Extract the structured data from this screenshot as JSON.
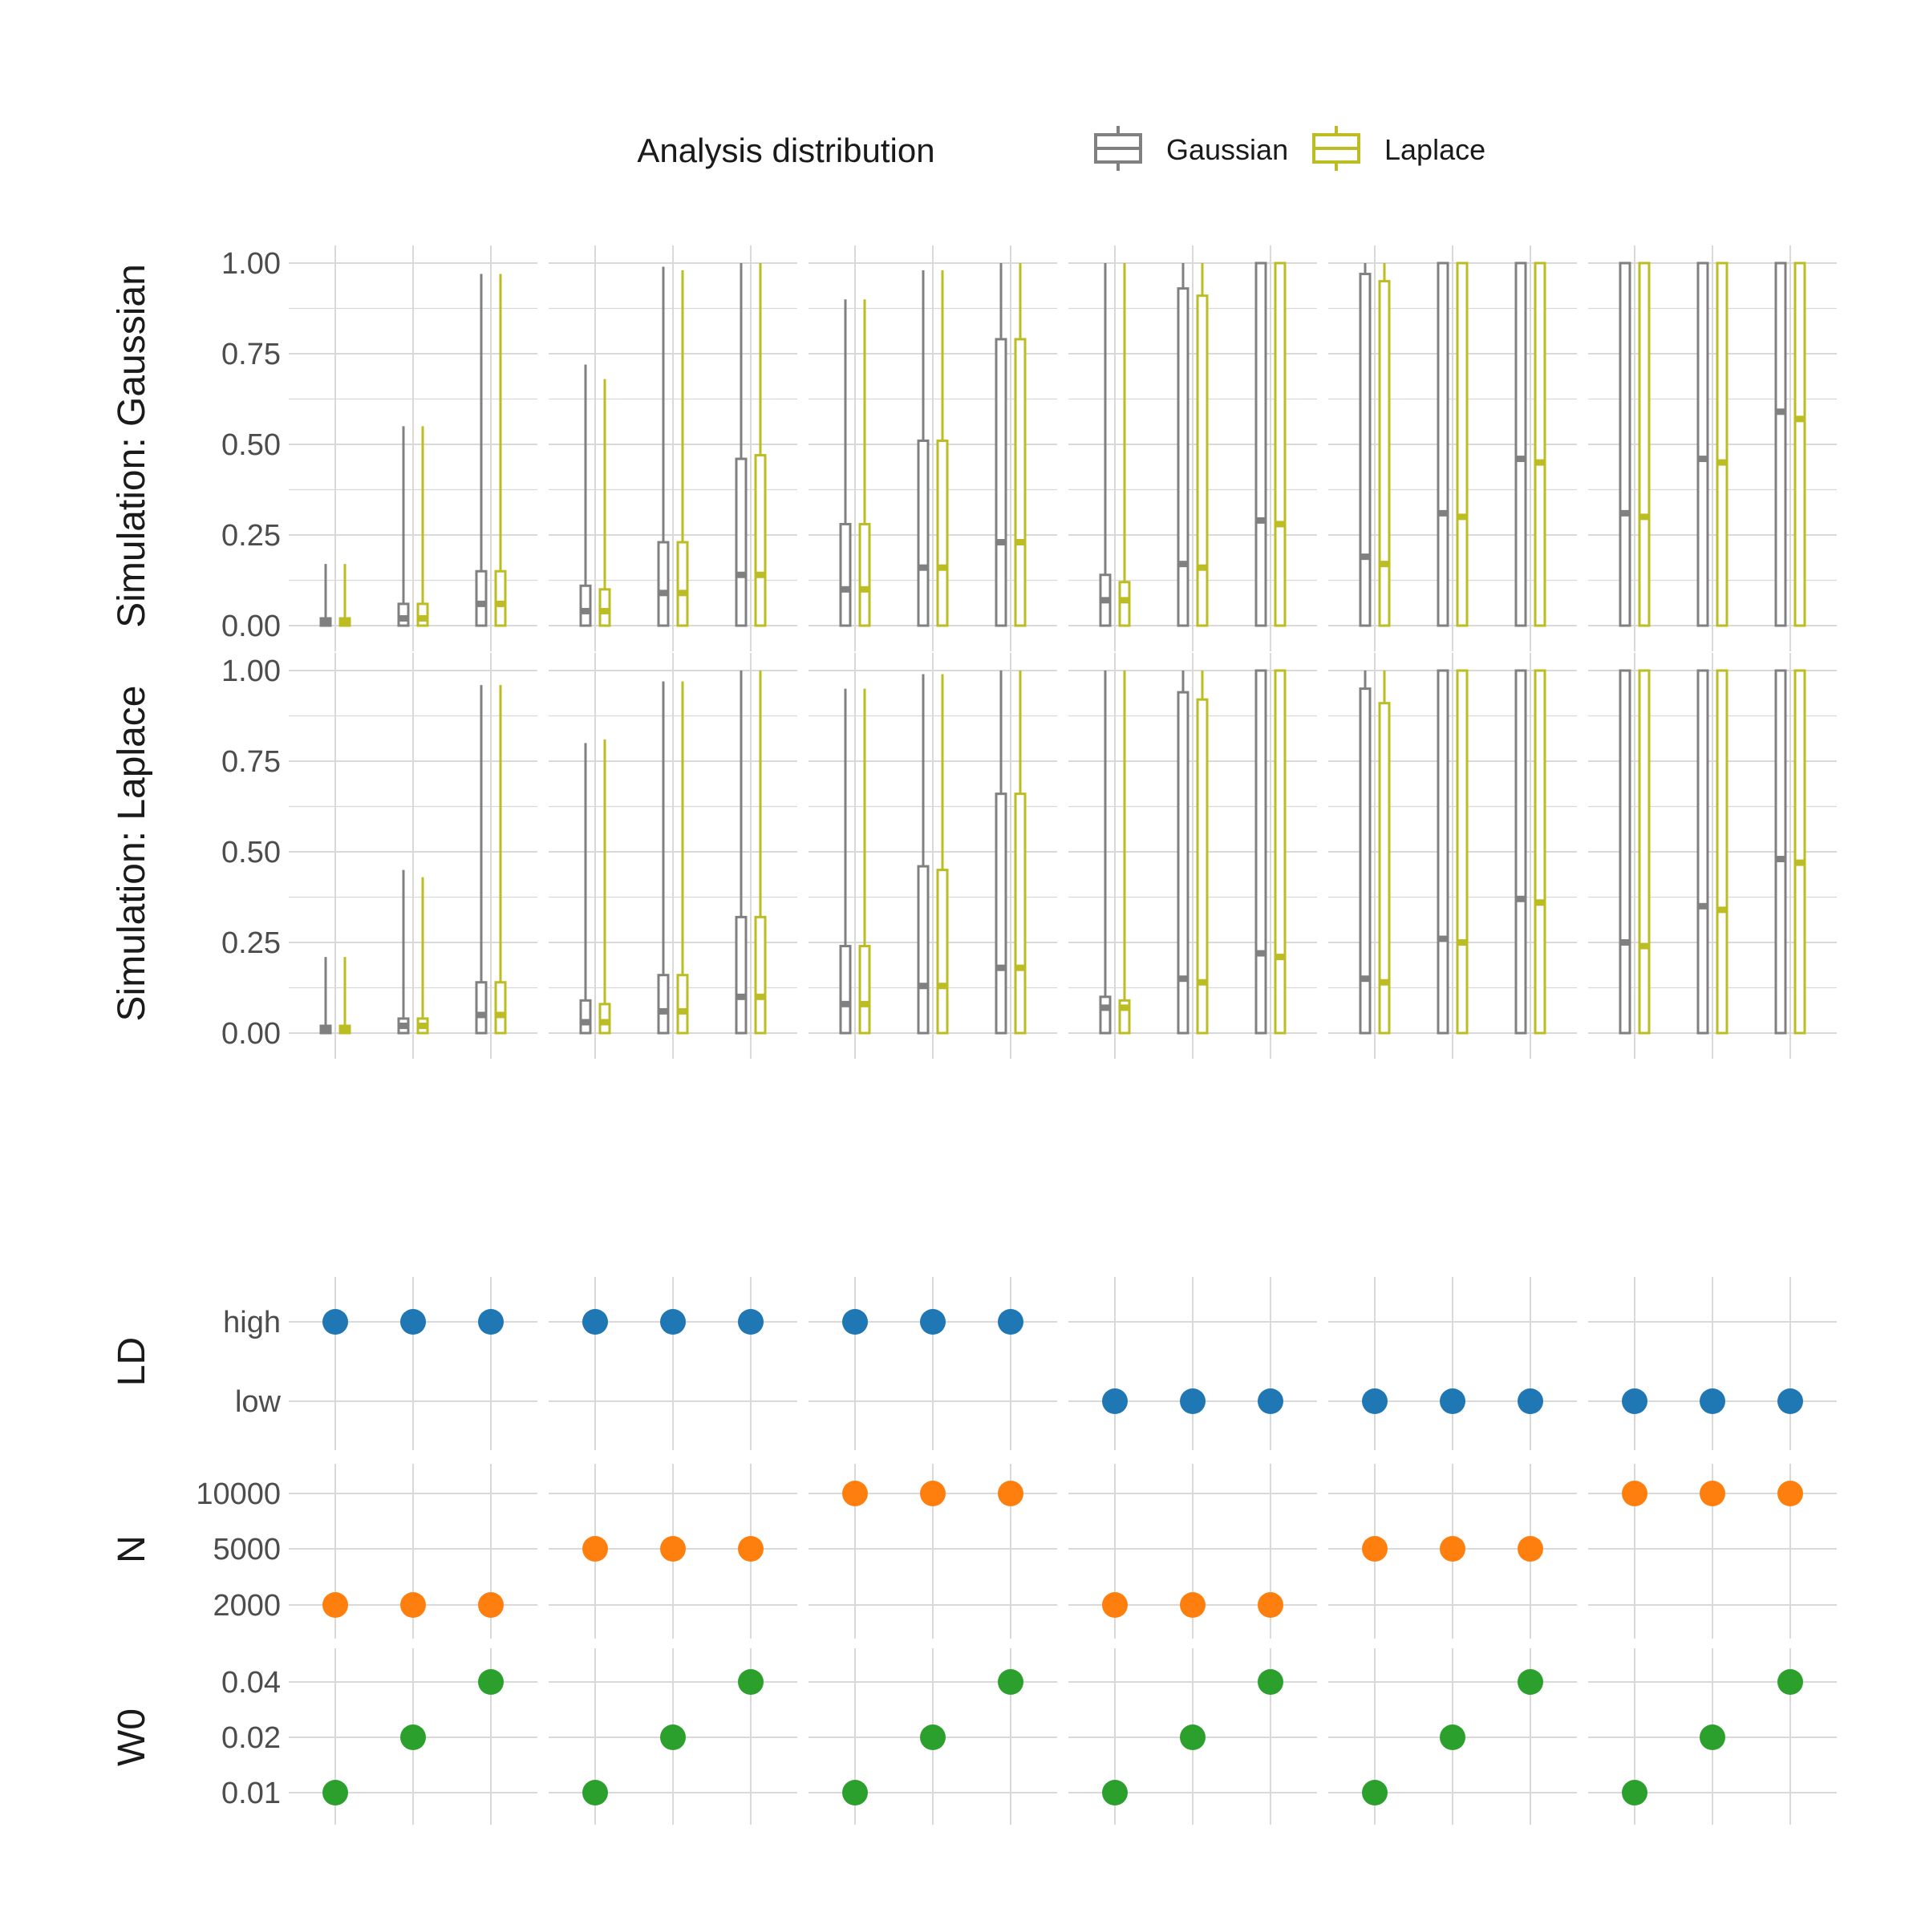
{
  "legend": {
    "title": "Analysis distribution",
    "entries": [
      {
        "label": "Gaussian",
        "color": "#808080"
      },
      {
        "label": "Laplace",
        "color": "#bcbd22"
      }
    ]
  },
  "chart_data": [
    {
      "type": "boxplot",
      "panel": "Simulation: Gaussian",
      "ylabel": "Simulation: Gaussian",
      "yticks": [
        "0.00",
        "0.25",
        "0.50",
        "0.75",
        "1.00"
      ],
      "ylim": [
        0,
        1
      ],
      "groups": 18,
      "series": [
        {
          "name": "Gaussian",
          "color": "#808080",
          "stats": [
            {
              "whisker_low": 0,
              "q1": 0.0,
              "median": 0.01,
              "q3": 0.02,
              "whisker_high": 0.17
            },
            {
              "whisker_low": 0,
              "q1": 0.0,
              "median": 0.02,
              "q3": 0.06,
              "whisker_high": 0.55
            },
            {
              "whisker_low": 0,
              "q1": 0.0,
              "median": 0.06,
              "q3": 0.15,
              "whisker_high": 0.97
            },
            {
              "whisker_low": 0,
              "q1": 0.0,
              "median": 0.04,
              "q3": 0.11,
              "whisker_high": 0.72
            },
            {
              "whisker_low": 0,
              "q1": 0.0,
              "median": 0.09,
              "q3": 0.23,
              "whisker_high": 0.99
            },
            {
              "whisker_low": 0,
              "q1": 0.0,
              "median": 0.14,
              "q3": 0.46,
              "whisker_high": 1.0
            },
            {
              "whisker_low": 0,
              "q1": 0.0,
              "median": 0.1,
              "q3": 0.28,
              "whisker_high": 0.9
            },
            {
              "whisker_low": 0,
              "q1": 0.0,
              "median": 0.16,
              "q3": 0.51,
              "whisker_high": 0.98
            },
            {
              "whisker_low": 0,
              "q1": 0.0,
              "median": 0.23,
              "q3": 0.79,
              "whisker_high": 1.0
            },
            {
              "whisker_low": 0,
              "q1": 0.0,
              "median": 0.07,
              "q3": 0.14,
              "whisker_high": 1.0
            },
            {
              "whisker_low": 0,
              "q1": 0.0,
              "median": 0.17,
              "q3": 0.93,
              "whisker_high": 1.0
            },
            {
              "whisker_low": 0,
              "q1": 0.0,
              "median": 0.29,
              "q3": 1.0,
              "whisker_high": 1.0
            },
            {
              "whisker_low": 0,
              "q1": 0.0,
              "median": 0.19,
              "q3": 0.97,
              "whisker_high": 1.0
            },
            {
              "whisker_low": 0,
              "q1": 0.0,
              "median": 0.31,
              "q3": 1.0,
              "whisker_high": 1.0
            },
            {
              "whisker_low": 0,
              "q1": 0.0,
              "median": 0.46,
              "q3": 1.0,
              "whisker_high": 1.0
            },
            {
              "whisker_low": 0,
              "q1": 0.0,
              "median": 0.31,
              "q3": 1.0,
              "whisker_high": 1.0
            },
            {
              "whisker_low": 0,
              "q1": 0.0,
              "median": 0.46,
              "q3": 1.0,
              "whisker_high": 1.0
            },
            {
              "whisker_low": 0,
              "q1": 0.0,
              "median": 0.59,
              "q3": 1.0,
              "whisker_high": 1.0
            }
          ]
        },
        {
          "name": "Laplace",
          "color": "#bcbd22",
          "stats": [
            {
              "whisker_low": 0,
              "q1": 0.0,
              "median": 0.01,
              "q3": 0.02,
              "whisker_high": 0.17
            },
            {
              "whisker_low": 0,
              "q1": 0.0,
              "median": 0.02,
              "q3": 0.06,
              "whisker_high": 0.55
            },
            {
              "whisker_low": 0,
              "q1": 0.0,
              "median": 0.06,
              "q3": 0.15,
              "whisker_high": 0.97
            },
            {
              "whisker_low": 0,
              "q1": 0.0,
              "median": 0.04,
              "q3": 0.1,
              "whisker_high": 0.68
            },
            {
              "whisker_low": 0,
              "q1": 0.0,
              "median": 0.09,
              "q3": 0.23,
              "whisker_high": 0.98
            },
            {
              "whisker_low": 0,
              "q1": 0.0,
              "median": 0.14,
              "q3": 0.47,
              "whisker_high": 1.0
            },
            {
              "whisker_low": 0,
              "q1": 0.0,
              "median": 0.1,
              "q3": 0.28,
              "whisker_high": 0.9
            },
            {
              "whisker_low": 0,
              "q1": 0.0,
              "median": 0.16,
              "q3": 0.51,
              "whisker_high": 0.98
            },
            {
              "whisker_low": 0,
              "q1": 0.0,
              "median": 0.23,
              "q3": 0.79,
              "whisker_high": 1.0
            },
            {
              "whisker_low": 0,
              "q1": 0.0,
              "median": 0.07,
              "q3": 0.12,
              "whisker_high": 1.0
            },
            {
              "whisker_low": 0,
              "q1": 0.0,
              "median": 0.16,
              "q3": 0.91,
              "whisker_high": 1.0
            },
            {
              "whisker_low": 0,
              "q1": 0.0,
              "median": 0.28,
              "q3": 1.0,
              "whisker_high": 1.0
            },
            {
              "whisker_low": 0,
              "q1": 0.0,
              "median": 0.17,
              "q3": 0.95,
              "whisker_high": 1.0
            },
            {
              "whisker_low": 0,
              "q1": 0.0,
              "median": 0.3,
              "q3": 1.0,
              "whisker_high": 1.0
            },
            {
              "whisker_low": 0,
              "q1": 0.0,
              "median": 0.45,
              "q3": 1.0,
              "whisker_high": 1.0
            },
            {
              "whisker_low": 0,
              "q1": 0.0,
              "median": 0.3,
              "q3": 1.0,
              "whisker_high": 1.0
            },
            {
              "whisker_low": 0,
              "q1": 0.0,
              "median": 0.45,
              "q3": 1.0,
              "whisker_high": 1.0
            },
            {
              "whisker_low": 0,
              "q1": 0.0,
              "median": 0.57,
              "q3": 1.0,
              "whisker_high": 1.0
            }
          ]
        }
      ]
    },
    {
      "type": "boxplot",
      "panel": "Simulation: Laplace",
      "ylabel": "Simulation: Laplace",
      "yticks": [
        "0.00",
        "0.25",
        "0.50",
        "0.75",
        "1.00"
      ],
      "ylim": [
        0,
        1
      ],
      "groups": 18,
      "series": [
        {
          "name": "Gaussian",
          "color": "#808080",
          "stats": [
            {
              "whisker_low": 0,
              "q1": 0.0,
              "median": 0.01,
              "q3": 0.02,
              "whisker_high": 0.21
            },
            {
              "whisker_low": 0,
              "q1": 0.0,
              "median": 0.02,
              "q3": 0.04,
              "whisker_high": 0.45
            },
            {
              "whisker_low": 0,
              "q1": 0.0,
              "median": 0.05,
              "q3": 0.14,
              "whisker_high": 0.96
            },
            {
              "whisker_low": 0,
              "q1": 0.0,
              "median": 0.03,
              "q3": 0.09,
              "whisker_high": 0.8
            },
            {
              "whisker_low": 0,
              "q1": 0.0,
              "median": 0.06,
              "q3": 0.16,
              "whisker_high": 0.97
            },
            {
              "whisker_low": 0,
              "q1": 0.0,
              "median": 0.1,
              "q3": 0.32,
              "whisker_high": 1.0
            },
            {
              "whisker_low": 0,
              "q1": 0.0,
              "median": 0.08,
              "q3": 0.24,
              "whisker_high": 0.95
            },
            {
              "whisker_low": 0,
              "q1": 0.0,
              "median": 0.13,
              "q3": 0.46,
              "whisker_high": 0.99
            },
            {
              "whisker_low": 0,
              "q1": 0.0,
              "median": 0.18,
              "q3": 0.66,
              "whisker_high": 1.0
            },
            {
              "whisker_low": 0,
              "q1": 0.0,
              "median": 0.07,
              "q3": 0.1,
              "whisker_high": 1.0
            },
            {
              "whisker_low": 0,
              "q1": 0.0,
              "median": 0.15,
              "q3": 0.94,
              "whisker_high": 1.0
            },
            {
              "whisker_low": 0,
              "q1": 0.0,
              "median": 0.22,
              "q3": 1.0,
              "whisker_high": 1.0
            },
            {
              "whisker_low": 0,
              "q1": 0.0,
              "median": 0.15,
              "q3": 0.95,
              "whisker_high": 1.0
            },
            {
              "whisker_low": 0,
              "q1": 0.0,
              "median": 0.26,
              "q3": 1.0,
              "whisker_high": 1.0
            },
            {
              "whisker_low": 0,
              "q1": 0.0,
              "median": 0.37,
              "q3": 1.0,
              "whisker_high": 1.0
            },
            {
              "whisker_low": 0,
              "q1": 0.0,
              "median": 0.25,
              "q3": 1.0,
              "whisker_high": 1.0
            },
            {
              "whisker_low": 0,
              "q1": 0.0,
              "median": 0.35,
              "q3": 1.0,
              "whisker_high": 1.0
            },
            {
              "whisker_low": 0,
              "q1": 0.0,
              "median": 0.48,
              "q3": 1.0,
              "whisker_high": 1.0
            }
          ]
        },
        {
          "name": "Laplace",
          "color": "#bcbd22",
          "stats": [
            {
              "whisker_low": 0,
              "q1": 0.0,
              "median": 0.01,
              "q3": 0.02,
              "whisker_high": 0.21
            },
            {
              "whisker_low": 0,
              "q1": 0.0,
              "median": 0.02,
              "q3": 0.04,
              "whisker_high": 0.43
            },
            {
              "whisker_low": 0,
              "q1": 0.0,
              "median": 0.05,
              "q3": 0.14,
              "whisker_high": 0.96
            },
            {
              "whisker_low": 0,
              "q1": 0.0,
              "median": 0.03,
              "q3": 0.08,
              "whisker_high": 0.81
            },
            {
              "whisker_low": 0,
              "q1": 0.0,
              "median": 0.06,
              "q3": 0.16,
              "whisker_high": 0.97
            },
            {
              "whisker_low": 0,
              "q1": 0.0,
              "median": 0.1,
              "q3": 0.32,
              "whisker_high": 1.0
            },
            {
              "whisker_low": 0,
              "q1": 0.0,
              "median": 0.08,
              "q3": 0.24,
              "whisker_high": 0.95
            },
            {
              "whisker_low": 0,
              "q1": 0.0,
              "median": 0.13,
              "q3": 0.45,
              "whisker_high": 0.99
            },
            {
              "whisker_low": 0,
              "q1": 0.0,
              "median": 0.18,
              "q3": 0.66,
              "whisker_high": 1.0
            },
            {
              "whisker_low": 0,
              "q1": 0.0,
              "median": 0.07,
              "q3": 0.09,
              "whisker_high": 1.0
            },
            {
              "whisker_low": 0,
              "q1": 0.0,
              "median": 0.14,
              "q3": 0.92,
              "whisker_high": 1.0
            },
            {
              "whisker_low": 0,
              "q1": 0.0,
              "median": 0.21,
              "q3": 1.0,
              "whisker_high": 1.0
            },
            {
              "whisker_low": 0,
              "q1": 0.0,
              "median": 0.14,
              "q3": 0.91,
              "whisker_high": 1.0
            },
            {
              "whisker_low": 0,
              "q1": 0.0,
              "median": 0.25,
              "q3": 1.0,
              "whisker_high": 1.0
            },
            {
              "whisker_low": 0,
              "q1": 0.0,
              "median": 0.36,
              "q3": 1.0,
              "whisker_high": 1.0
            },
            {
              "whisker_low": 0,
              "q1": 0.0,
              "median": 0.24,
              "q3": 1.0,
              "whisker_high": 1.0
            },
            {
              "whisker_low": 0,
              "q1": 0.0,
              "median": 0.34,
              "q3": 1.0,
              "whisker_high": 1.0
            },
            {
              "whisker_low": 0,
              "q1": 0.0,
              "median": 0.47,
              "q3": 1.0,
              "whisker_high": 1.0
            }
          ]
        }
      ]
    },
    {
      "type": "scatter",
      "panel": "LD",
      "ylabel": "LD",
      "categories": [
        "low",
        "high"
      ],
      "color": "#1f77b4",
      "values": [
        "high",
        "high",
        "high",
        "high",
        "high",
        "high",
        "high",
        "high",
        "high",
        "low",
        "low",
        "low",
        "low",
        "low",
        "low",
        "low",
        "low",
        "low"
      ]
    },
    {
      "type": "scatter",
      "panel": "N",
      "ylabel": "N",
      "categories": [
        "2000",
        "5000",
        "10000"
      ],
      "color": "#ff7f0e",
      "values": [
        "2000",
        "2000",
        "2000",
        "5000",
        "5000",
        "5000",
        "10000",
        "10000",
        "10000",
        "2000",
        "2000",
        "2000",
        "5000",
        "5000",
        "5000",
        "10000",
        "10000",
        "10000"
      ]
    },
    {
      "type": "scatter",
      "panel": "W0",
      "ylabel": "W0",
      "categories": [
        "0.01",
        "0.02",
        "0.04"
      ],
      "color": "#2ca02c",
      "values": [
        "0.01",
        "0.02",
        "0.04",
        "0.01",
        "0.02",
        "0.04",
        "0.01",
        "0.02",
        "0.04",
        "0.01",
        "0.02",
        "0.04",
        "0.01",
        "0.02",
        "0.04",
        "0.01",
        "0.02",
        "0.04"
      ]
    }
  ]
}
